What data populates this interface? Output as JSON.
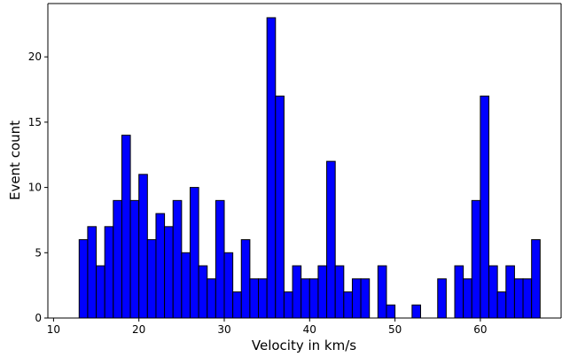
{
  "chart_data": {
    "type": "bar",
    "title": "",
    "xlabel": "Velocity in km/s",
    "ylabel": "Event count",
    "xlim": [
      10,
      69
    ],
    "ylim": [
      0,
      24
    ],
    "x_ticks": [
      "10",
      "20",
      "30",
      "40",
      "50",
      "60"
    ],
    "y_ticks": [
      "0",
      "5",
      "10",
      "15",
      "20"
    ],
    "grid": false,
    "legend": "none",
    "bar_color": "#0000ff",
    "edge_color": "#000000",
    "bin_start": 13,
    "bin_width": 1,
    "values": [
      6,
      7,
      4,
      7,
      9,
      14,
      9,
      11,
      6,
      8,
      7,
      9,
      5,
      10,
      4,
      3,
      9,
      5,
      2,
      6,
      3,
      3,
      23,
      17,
      2,
      4,
      3,
      3,
      4,
      12,
      4,
      2,
      3,
      3,
      0,
      4,
      1,
      0,
      0,
      1,
      0,
      0,
      3,
      0,
      4,
      3,
      9,
      17,
      4,
      2,
      4,
      3,
      3,
      6
    ]
  }
}
